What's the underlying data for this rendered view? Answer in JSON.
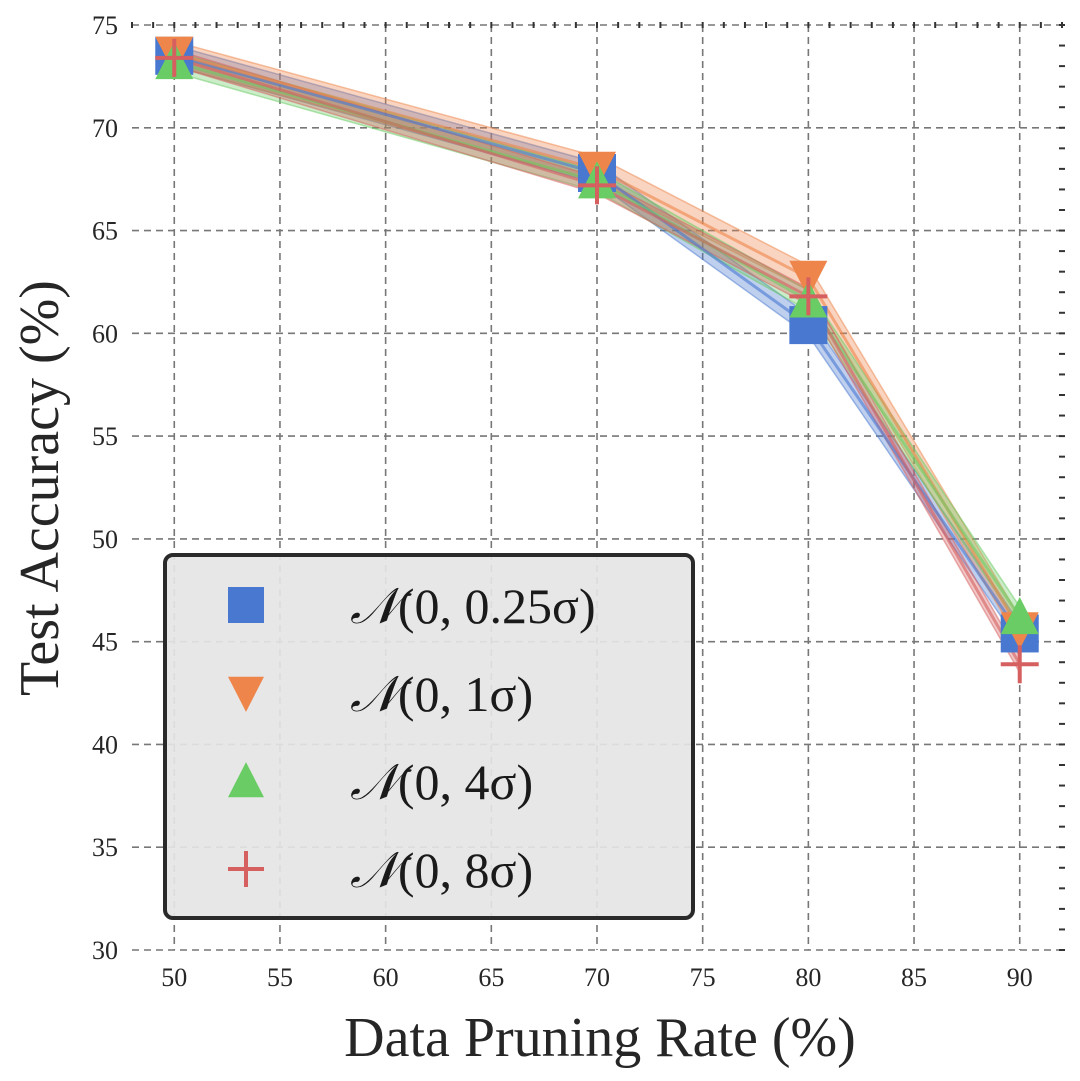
{
  "chart_data": {
    "type": "line",
    "xlabel": "Data Pruning Rate (%)",
    "ylabel": "Test Accuracy (%)",
    "xlim": [
      48,
      92
    ],
    "ylim": [
      30,
      75
    ],
    "xticks": [
      50,
      55,
      60,
      65,
      70,
      75,
      80,
      85,
      90
    ],
    "yticks": [
      30,
      35,
      40,
      45,
      50,
      55,
      60,
      65,
      70,
      75
    ],
    "x": [
      50,
      70,
      80,
      90
    ],
    "grid": true,
    "legend_position": "lower-left",
    "series": [
      {
        "name": "N(0, 0.25σ)",
        "values": [
          73.5,
          67.8,
          60.4,
          45.4
        ],
        "band": 0.5,
        "color": "#4878d0",
        "marker": "square"
      },
      {
        "name": "N(0, 1σ)",
        "values": [
          73.6,
          68.0,
          62.7,
          45.6
        ],
        "band": 0.6,
        "color": "#ee854a",
        "marker": "triangle-down"
      },
      {
        "name": "N(0, 4σ)",
        "values": [
          73.2,
          67.4,
          61.6,
          46.2
        ],
        "band": 0.5,
        "color": "#6acc64",
        "marker": "triangle-up"
      },
      {
        "name": "N(0, 8σ)",
        "values": [
          73.4,
          67.2,
          61.8,
          43.9
        ],
        "band": 0.4,
        "color": "#d65f5f",
        "marker": "plus"
      }
    ]
  },
  "legend": {
    "entries": [
      {
        "prefix": "𝒩",
        "text": "(0, 0.25σ)"
      },
      {
        "prefix": "𝒩",
        "text": "(0, 1σ)"
      },
      {
        "prefix": "𝒩",
        "text": "(0, 4σ)"
      },
      {
        "prefix": "𝒩",
        "text": "(0, 8σ)"
      }
    ]
  }
}
